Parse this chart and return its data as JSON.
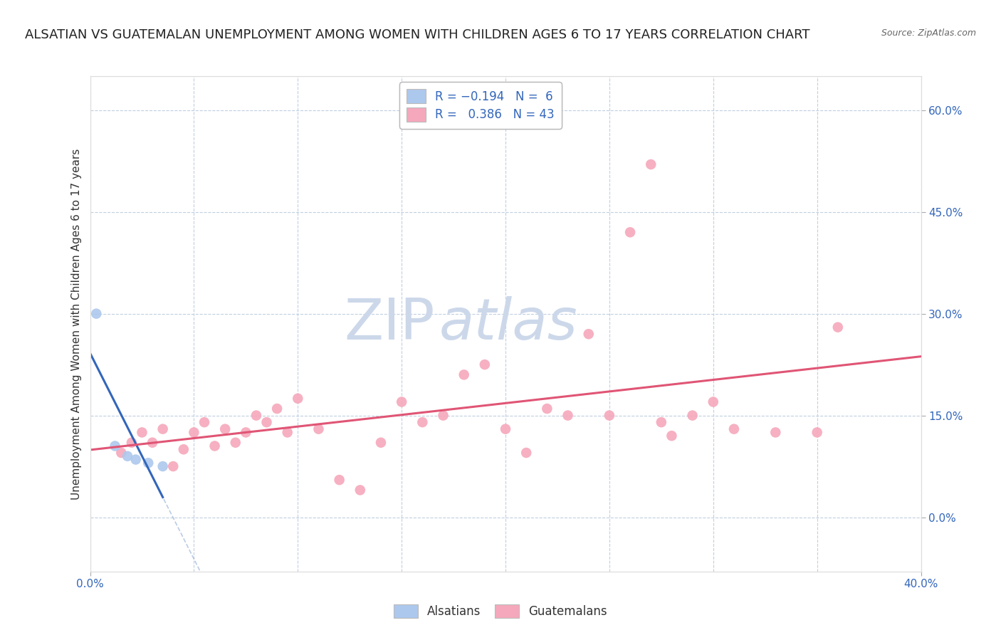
{
  "title": "ALSATIAN VS GUATEMALAN UNEMPLOYMENT AMONG WOMEN WITH CHILDREN AGES 6 TO 17 YEARS CORRELATION CHART",
  "source": "Source: ZipAtlas.com",
  "ylabel": "Unemployment Among Women with Children Ages 6 to 17 years",
  "x_tick_values": [
    0,
    5,
    10,
    15,
    20,
    25,
    30,
    35,
    40
  ],
  "y_tick_values_right": [
    0,
    15,
    30,
    45,
    60
  ],
  "xlim": [
    0,
    40
  ],
  "ylim": [
    -8,
    65
  ],
  "plot_bottom_pct": 0,
  "alsatian_R": -0.194,
  "alsatian_N": 6,
  "guatemalan_R": 0.386,
  "guatemalan_N": 43,
  "alsatian_color": "#adc8ed",
  "alsatian_line_color": "#3366bb",
  "alsatian_line_dash_color": "#7799cc",
  "guatemalan_color": "#f5a8bb",
  "guatemalan_line_color": "#e05575",
  "background_color": "#ffffff",
  "grid_color": "#c0cfe0",
  "alsatian_points_x": [
    0.3,
    1.2,
    1.8,
    2.2,
    2.8,
    3.5
  ],
  "alsatian_points_y": [
    30.0,
    10.5,
    9.0,
    8.5,
    8.0,
    7.5
  ],
  "guatemalan_points_x": [
    1.5,
    2.0,
    2.5,
    3.0,
    3.5,
    4.0,
    4.5,
    5.0,
    5.5,
    6.0,
    6.5,
    7.0,
    7.5,
    8.0,
    8.5,
    9.0,
    9.5,
    10.0,
    11.0,
    12.0,
    13.0,
    14.0,
    15.0,
    16.0,
    17.0,
    18.0,
    19.0,
    20.0,
    21.0,
    22.0,
    23.0,
    24.0,
    25.0,
    26.0,
    27.0,
    27.5,
    28.0,
    29.0,
    30.0,
    31.0,
    33.0,
    35.0,
    36.0
  ],
  "guatemalan_points_y": [
    9.5,
    11.0,
    12.5,
    11.0,
    13.0,
    7.5,
    10.0,
    12.5,
    14.0,
    10.5,
    13.0,
    11.0,
    12.5,
    15.0,
    14.0,
    16.0,
    12.5,
    17.5,
    13.0,
    5.5,
    4.0,
    11.0,
    17.0,
    14.0,
    15.0,
    21.0,
    22.5,
    13.0,
    9.5,
    16.0,
    15.0,
    27.0,
    15.0,
    42.0,
    52.0,
    14.0,
    12.0,
    15.0,
    17.0,
    13.0,
    12.5,
    12.5,
    28.0
  ],
  "watermark_zip": "ZIP",
  "watermark_atlas": "atlas",
  "watermark_color": "#ccd8ea",
  "title_fontsize": 13,
  "axis_label_fontsize": 11,
  "tick_fontsize": 11,
  "source_fontsize": 9
}
